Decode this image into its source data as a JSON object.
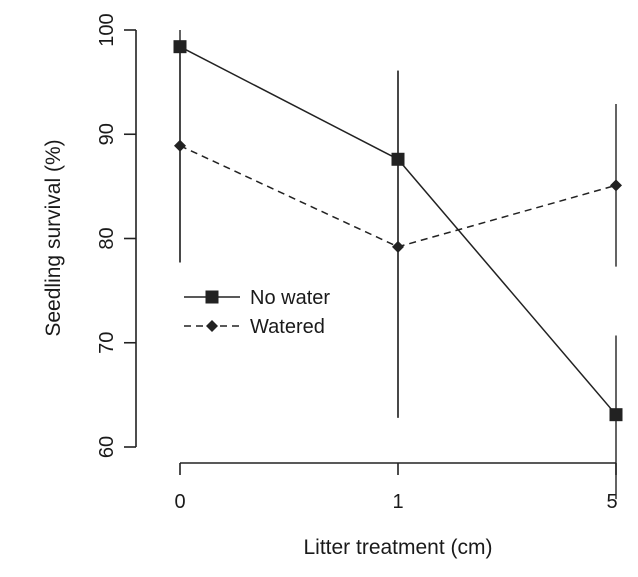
{
  "chart_data": {
    "type": "line",
    "xlabel": "Litter treatment (cm)",
    "ylabel": "Seedling survival (%)",
    "categories": [
      "0",
      "1",
      "5"
    ],
    "ylim": [
      60,
      100
    ],
    "yticks": [
      "60",
      "70",
      "80",
      "90",
      "100"
    ],
    "legend_position": "left",
    "series": [
      {
        "name": "No water",
        "values": [
          98.4,
          87.6,
          63.1
        ],
        "error_low": [
          77.7,
          62.8,
          55.0
        ],
        "error_high": [
          100.0,
          96.1,
          70.7
        ],
        "line_style": "solid",
        "marker": "square",
        "color": "#222222"
      },
      {
        "name": "Watered",
        "values": [
          88.9,
          79.2,
          85.1
        ],
        "error_low": [
          77.7,
          62.8,
          77.3
        ],
        "error_high": [
          98.4,
          96.1,
          92.9
        ],
        "line_style": "dashed",
        "marker": "diamond",
        "color": "#222222"
      }
    ]
  }
}
